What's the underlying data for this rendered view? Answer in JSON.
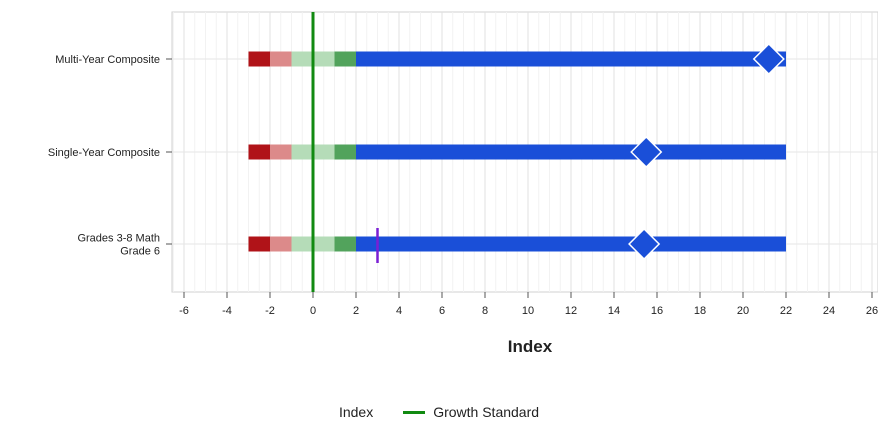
{
  "chart_data": {
    "type": "bar",
    "orientation": "horizontal",
    "categories": [
      "Multi-Year Composite",
      "Single-Year Composite",
      "Grades 3-8 Math\nGrade 6"
    ],
    "xlabel": "Index",
    "xlim": [
      -6.5,
      26
    ],
    "xticks": [
      -6,
      -4,
      -2,
      0,
      2,
      4,
      6,
      8,
      10,
      12,
      14,
      16,
      18,
      20,
      22,
      24,
      26
    ],
    "grid": true,
    "bands": [
      {
        "from": -3,
        "to": -2,
        "color": "#b01318"
      },
      {
        "from": -2,
        "to": -1,
        "color": "#dc8a8a"
      },
      {
        "from": -1,
        "to": 1,
        "color": "#b5dcb8"
      },
      {
        "from": 1,
        "to": 2,
        "color": "#52a35c"
      },
      {
        "from": 2,
        "to": 22,
        "color": "#1a4fd8"
      }
    ],
    "index_values": [
      21.2,
      15.5,
      15.4
    ],
    "growth_standard": 0,
    "extra_marker": {
      "category_index": 2,
      "value": 3,
      "color": "#7a1fd4"
    },
    "legend": [
      {
        "label": "Index",
        "swatch": false
      },
      {
        "label": "Growth Standard",
        "swatch": true,
        "color": "#118a11"
      }
    ],
    "legend_position": "bottom",
    "colors": {
      "index_marker": "#1a4fd8",
      "growth_line": "#118a11"
    }
  }
}
